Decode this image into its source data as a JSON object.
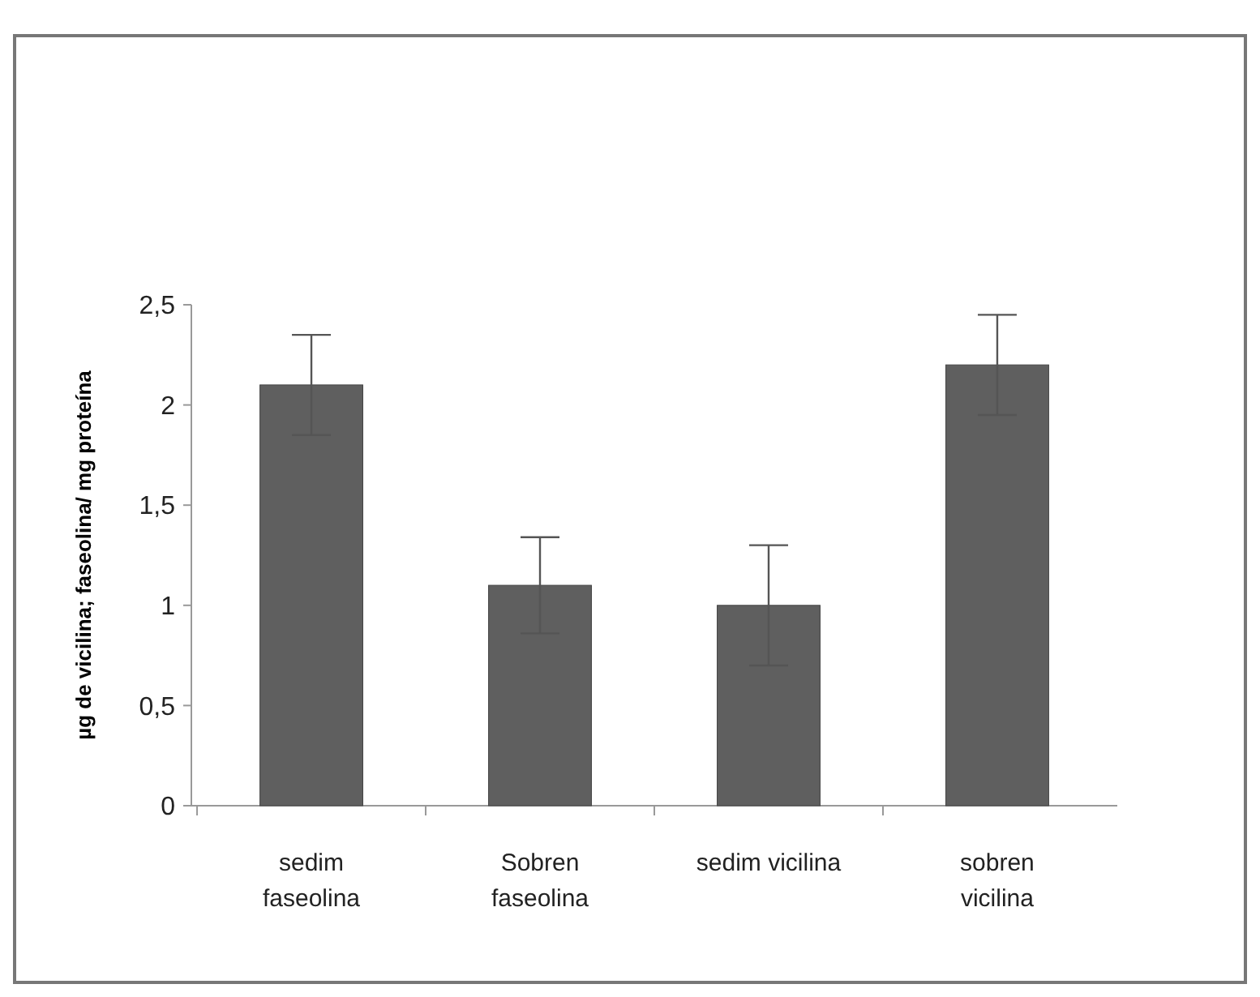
{
  "chart_data": {
    "type": "bar",
    "ylabel": "µg de vicilina; faseolina/ mg proteína",
    "categories": [
      "sedim faseolina",
      "Sobren faseolina",
      "sedim vicilina",
      "sobren vicilina"
    ],
    "values": [
      2.1,
      1.1,
      1.0,
      2.2
    ],
    "errors": [
      0.25,
      0.24,
      0.3,
      0.25
    ],
    "color": "#5f5f5f",
    "ylim": [
      0,
      2.5
    ],
    "yticks": [
      0,
      {
        "value": 0.5,
        "label": "0,5"
      },
      1,
      {
        "value": 1.5,
        "label": "1,5"
      },
      2,
      {
        "value": 2.5,
        "label": "2,5"
      }
    ],
    "grid": false
  }
}
